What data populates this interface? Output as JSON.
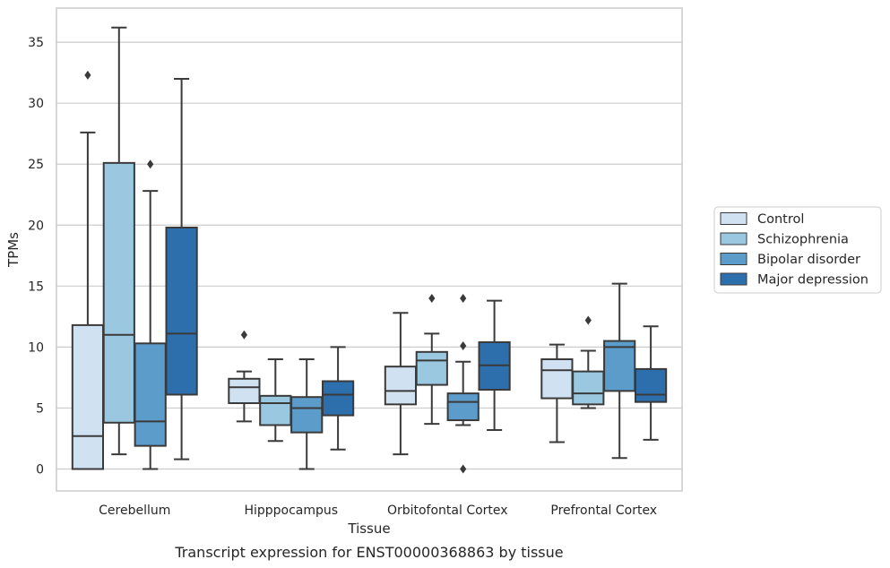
{
  "chart_data": {
    "type": "box",
    "xlabel": "Tissue",
    "ylabel": "TPMs",
    "caption": "Transcript expression for ENST00000368863 by tissue",
    "ylim": [
      -1.8,
      37.8
    ],
    "yticks": [
      0,
      5,
      10,
      15,
      20,
      25,
      30,
      35
    ],
    "grid": "horizontal",
    "legend_position": "right",
    "categories": [
      "Cerebellum",
      "Hipppocampus",
      "Orbitofontal Cortex",
      "Prefrontal Cortex"
    ],
    "series": [
      {
        "name": "Control",
        "color": "#d0e1f2",
        "boxes": [
          {
            "whislo": 0.0,
            "q1": 0.0,
            "med": 2.7,
            "q3": 11.8,
            "whishi": 27.6,
            "fliers": [
              32.3
            ]
          },
          {
            "whislo": 3.9,
            "q1": 5.4,
            "med": 6.7,
            "q3": 7.4,
            "whishi": 8.0,
            "fliers": [
              11.0
            ]
          },
          {
            "whislo": 1.2,
            "q1": 5.3,
            "med": 6.4,
            "q3": 8.4,
            "whishi": 12.8,
            "fliers": []
          },
          {
            "whislo": 2.2,
            "q1": 5.8,
            "med": 8.1,
            "q3": 9.0,
            "whishi": 10.2,
            "fliers": []
          }
        ]
      },
      {
        "name": "Schizophrenia",
        "color": "#9ac8e0",
        "boxes": [
          {
            "whislo": 1.2,
            "q1": 3.8,
            "med": 11.0,
            "q3": 25.1,
            "whishi": 36.2,
            "fliers": []
          },
          {
            "whislo": 2.3,
            "q1": 3.6,
            "med": 5.4,
            "q3": 6.0,
            "whishi": 9.0,
            "fliers": []
          },
          {
            "whislo": 3.7,
            "q1": 6.9,
            "med": 8.9,
            "q3": 9.6,
            "whishi": 11.1,
            "fliers": [
              14.0
            ]
          },
          {
            "whislo": 5.0,
            "q1": 5.3,
            "med": 6.2,
            "q3": 8.0,
            "whishi": 9.7,
            "fliers": [
              12.2
            ]
          }
        ]
      },
      {
        "name": "Bipolar disorder",
        "color": "#5b9cca",
        "boxes": [
          {
            "whislo": 0.0,
            "q1": 1.9,
            "med": 3.9,
            "q3": 10.3,
            "whishi": 22.8,
            "fliers": [
              25.0
            ]
          },
          {
            "whislo": 0.0,
            "q1": 3.0,
            "med": 5.0,
            "q3": 5.9,
            "whishi": 9.0,
            "fliers": []
          },
          {
            "whislo": 3.6,
            "q1": 4.0,
            "med": 5.5,
            "q3": 6.2,
            "whishi": 8.8,
            "fliers": [
              14.0,
              10.1,
              0.0
            ]
          },
          {
            "whislo": 0.9,
            "q1": 6.4,
            "med": 10.0,
            "q3": 10.5,
            "whishi": 15.2,
            "fliers": []
          }
        ]
      },
      {
        "name": "Major depression",
        "color": "#2d6ead",
        "boxes": [
          {
            "whislo": 0.8,
            "q1": 6.1,
            "med": 11.1,
            "q3": 19.8,
            "whishi": 32.0,
            "fliers": []
          },
          {
            "whislo": 1.6,
            "q1": 4.4,
            "med": 6.1,
            "q3": 7.2,
            "whishi": 10.0,
            "fliers": []
          },
          {
            "whislo": 3.2,
            "q1": 6.5,
            "med": 8.5,
            "q3": 10.4,
            "whishi": 13.8,
            "fliers": []
          },
          {
            "whislo": 2.4,
            "q1": 5.5,
            "med": 6.1,
            "q3": 8.2,
            "whishi": 11.7,
            "fliers": []
          }
        ]
      }
    ]
  }
}
